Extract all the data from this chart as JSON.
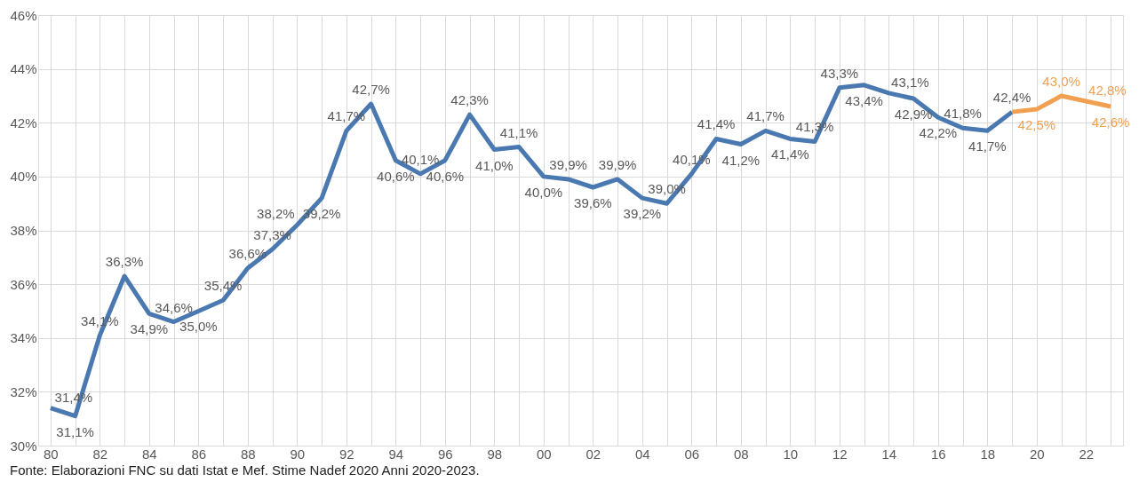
{
  "chart_data": {
    "type": "line",
    "categories": [
      "80",
      null,
      "82",
      null,
      "84",
      null,
      "86",
      null,
      "88",
      null,
      "90",
      null,
      "92",
      null,
      "94",
      null,
      "96",
      null,
      "98",
      null,
      "00",
      null,
      "02",
      null,
      "04",
      null,
      "06",
      null,
      "08",
      null,
      "10",
      null,
      "12",
      null,
      "14",
      null,
      "16",
      null,
      "18",
      null,
      "20",
      null,
      "22",
      null
    ],
    "series": [
      {
        "color": "#4a78b0",
        "values": [
          31.4,
          31.1,
          34.1,
          36.3,
          34.9,
          34.6,
          35.0,
          35.4,
          36.6,
          37.3,
          38.2,
          39.2,
          41.7,
          42.7,
          40.6,
          40.1,
          40.6,
          42.3,
          41.0,
          41.1,
          40.0,
          39.9,
          39.6,
          39.9,
          39.2,
          39.0,
          40.1,
          41.4,
          41.2,
          41.7,
          41.4,
          41.3,
          43.3,
          43.4,
          43.1,
          42.9,
          42.2,
          41.8,
          41.7,
          42.4,
          null,
          null,
          null,
          null
        ],
        "value_labels": [
          "31,4%",
          "31,1%",
          "34,1%",
          "36,3%",
          "34,9%",
          "34,6%",
          "35,0%",
          "35,4%",
          "36,6%",
          "37,3%",
          "38,2%",
          "39,2%",
          "41,7%",
          "42,7%",
          "40,6%",
          "40,1%",
          "40,6%",
          "42,3%",
          "41,0%",
          "41,1%",
          "40,0%",
          "39,9%",
          "39,6%",
          "39,9%",
          "39,2%",
          "39,0%",
          "40,1%",
          "41,4%",
          "41,2%",
          "41,7%",
          "41,4%",
          "41,3%",
          "43,3%",
          "43,4%",
          "43,1%",
          "42,9%",
          "42,2%",
          "41,8%",
          "41,7%",
          "42,4%",
          null,
          null,
          null,
          null
        ]
      },
      {
        "color": "#f0a050",
        "values": [
          null,
          null,
          null,
          null,
          null,
          null,
          null,
          null,
          null,
          null,
          null,
          null,
          null,
          null,
          null,
          null,
          null,
          null,
          null,
          null,
          null,
          null,
          null,
          null,
          null,
          null,
          null,
          null,
          null,
          null,
          null,
          null,
          null,
          null,
          null,
          null,
          null,
          null,
          null,
          42.4,
          42.5,
          43.0,
          42.8,
          42.6
        ],
        "value_labels": [
          null,
          null,
          null,
          null,
          null,
          null,
          null,
          null,
          null,
          null,
          null,
          null,
          null,
          null,
          null,
          null,
          null,
          null,
          null,
          null,
          null,
          null,
          null,
          null,
          null,
          null,
          null,
          null,
          null,
          null,
          null,
          null,
          null,
          null,
          null,
          null,
          null,
          null,
          null,
          null,
          "42,5%",
          "43,0%",
          "42,8%",
          "42,6%"
        ]
      }
    ],
    "ylim": [
      30,
      46
    ],
    "yticks": [
      {
        "value": 30,
        "label": "30%"
      },
      {
        "value": 32,
        "label": "32%"
      },
      {
        "value": 34,
        "label": "34%"
      },
      {
        "value": 36,
        "label": "36%"
      },
      {
        "value": 38,
        "label": "38%"
      },
      {
        "value": 40,
        "label": "40%"
      },
      {
        "value": 42,
        "label": "42%"
      },
      {
        "value": 44,
        "label": "44%"
      },
      {
        "value": 46,
        "label": "46%"
      }
    ],
    "grid": true,
    "legend": false,
    "marker": "none",
    "line_style": "solid",
    "annotations": [
      "Fonte: Elaborazioni FNC su dati Istat e Mef. Stime Nadef 2020 Anni 2020-2023."
    ]
  }
}
